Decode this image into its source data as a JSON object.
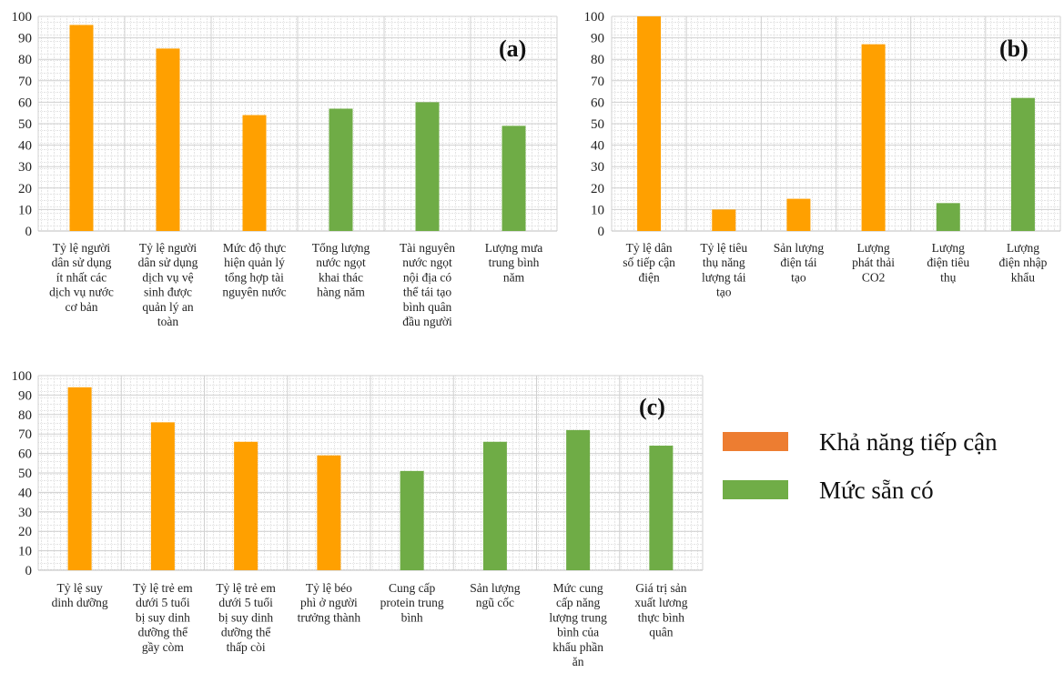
{
  "colors": {
    "access": "#ffa000",
    "availability": "#6fac46",
    "legend_access": "#ed7d31",
    "legend_availability": "#70ad47",
    "grid": "#d0d0d0"
  },
  "legend": {
    "access": "Khả năng tiếp cận",
    "availability": "Mức sẵn có"
  },
  "chart_data": [
    {
      "type": "bar",
      "panel": "(a)",
      "ylim": [
        0,
        100
      ],
      "yticks": [
        0,
        10,
        20,
        30,
        40,
        50,
        60,
        70,
        80,
        90,
        100
      ],
      "categories": [
        [
          "Tỷ lệ người",
          "dân sử dụng",
          "ít nhất các",
          "dịch vụ nước",
          "cơ bản"
        ],
        [
          "Tỷ lệ người",
          "dân sử dụng",
          "dịch vụ vệ",
          "sinh được",
          "quản lý an",
          "toàn"
        ],
        [
          "Mức độ thực",
          "hiện quản lý",
          "tổng hợp tài",
          "nguyên nước"
        ],
        [
          "Tổng lượng",
          "nước ngọt",
          "khai thác",
          "hàng năm"
        ],
        [
          "Tài nguyên",
          "nước ngọt",
          "nội địa có",
          "thể tái tạo",
          "bình quân",
          "đầu người"
        ],
        [
          "Lượng mưa",
          "trung bình",
          "năm"
        ]
      ],
      "values": [
        96,
        85,
        54,
        57,
        60,
        49
      ],
      "groups": [
        "access",
        "access",
        "access",
        "availability",
        "availability",
        "availability"
      ]
    },
    {
      "type": "bar",
      "panel": "(b)",
      "ylim": [
        0,
        100
      ],
      "yticks": [
        0,
        10,
        20,
        30,
        40,
        50,
        60,
        70,
        80,
        90,
        100
      ],
      "categories": [
        [
          "Tỷ lệ dân",
          "số tiếp cận",
          "điện"
        ],
        [
          "Tỷ lệ tiêu",
          "thụ năng",
          "lượng tái",
          "tạo"
        ],
        [
          "Sản lượng",
          "điện tái",
          "tạo"
        ],
        [
          "Lượng",
          "phát thải",
          "CO2"
        ],
        [
          "Lượng",
          "điện tiêu",
          "thụ"
        ],
        [
          "Lượng",
          "điện nhập",
          "khẩu"
        ]
      ],
      "values": [
        100,
        10,
        15,
        87,
        13,
        62
      ],
      "groups": [
        "access",
        "access",
        "access",
        "access",
        "availability",
        "availability"
      ]
    },
    {
      "type": "bar",
      "panel": "(c)",
      "ylim": [
        0,
        100
      ],
      "yticks": [
        0,
        10,
        20,
        30,
        40,
        50,
        60,
        70,
        80,
        90,
        100
      ],
      "categories": [
        [
          "Tỷ lệ suy",
          "dinh dưỡng"
        ],
        [
          "Tỷ lệ trẻ em",
          "dưới 5 tuổi",
          "bị suy dinh",
          "dưỡng thể",
          "gầy còm"
        ],
        [
          "Tỷ lệ trẻ em",
          "dưới 5 tuổi",
          "bị suy dinh",
          "dưỡng thể",
          "thấp còi"
        ],
        [
          "Tỷ lệ béo",
          "phì ở người",
          "trưởng thành"
        ],
        [
          "Cung cấp",
          "protein trung",
          "bình"
        ],
        [
          "Sản lượng",
          "ngũ cốc"
        ],
        [
          "Mức cung",
          "cấp năng",
          "lượng trung",
          "bình của",
          "khẩu phần",
          "ăn"
        ],
        [
          "Giá trị sản",
          "xuất lương",
          "thực bình",
          "quân"
        ]
      ],
      "values": [
        94,
        76,
        66,
        59,
        51,
        66,
        72,
        64
      ],
      "groups": [
        "access",
        "access",
        "access",
        "access",
        "availability",
        "availability",
        "availability",
        "availability"
      ]
    }
  ]
}
